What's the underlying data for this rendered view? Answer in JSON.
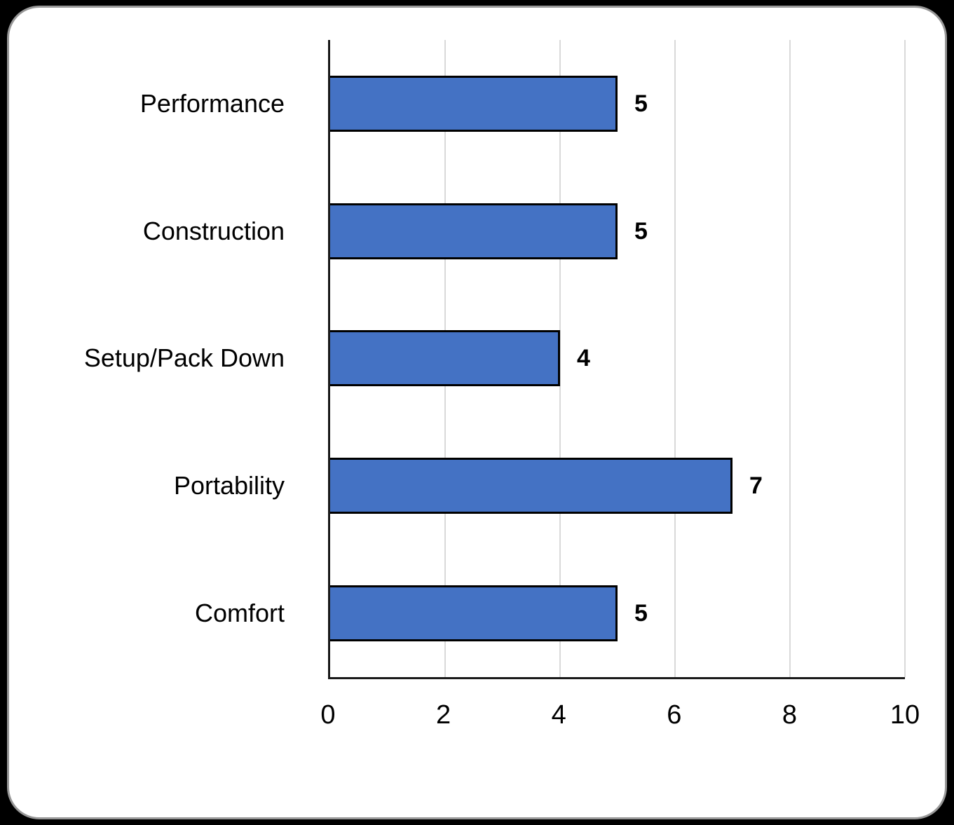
{
  "chart_data": {
    "type": "bar",
    "orientation": "horizontal",
    "categories": [
      "Performance",
      "Construction",
      "Setup/Pack Down",
      "Portability",
      "Comfort"
    ],
    "values": [
      5,
      5,
      4,
      7,
      5
    ],
    "data_labels": [
      "5",
      "5",
      "4",
      "7",
      "5"
    ],
    "title": "",
    "xlabel": "",
    "ylabel": "",
    "xlim": [
      0,
      10
    ],
    "xticks": [
      0,
      2,
      4,
      6,
      8,
      10
    ],
    "grid": true,
    "legend": "none",
    "bar_color": "#4472C4",
    "bar_border_color": "#000000",
    "gridline_color": "#d9d9d9",
    "axis_line_color": "#1a1a1a",
    "card_background": "#ffffff",
    "page_background": "#000000"
  }
}
